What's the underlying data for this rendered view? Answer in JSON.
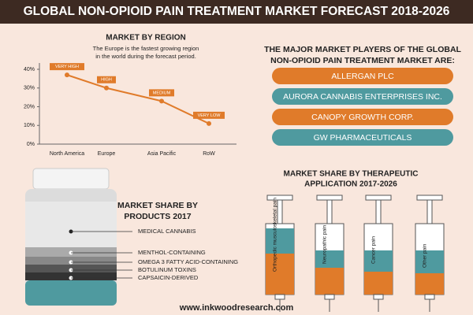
{
  "header": {
    "title": "GLOBAL NON-OPIOID PAIN TREATMENT MARKET FORECAST 2018-2026"
  },
  "chart_data": {
    "type": "line",
    "title": "MARKET BY REGION",
    "subtitle": [
      "The Europe is the fastest growing region",
      "in the world during the forecast period."
    ],
    "categories": [
      "North America",
      "Europe",
      "Asia Pacific",
      "RoW"
    ],
    "values": [
      37,
      30,
      23,
      11
    ],
    "point_labels": [
      "VERY HIGH",
      "HIGH",
      "MEDIUM",
      "VERY LOW"
    ],
    "color": "#e07b2a",
    "ylim": [
      0,
      40
    ],
    "yticks": [
      {
        "value": 0,
        "label": "0%"
      },
      {
        "value": 10,
        "label": "10%"
      },
      {
        "value": 20,
        "label": "20%"
      },
      {
        "value": 30,
        "label": "30%"
      },
      {
        "value": 40,
        "label": "40%"
      }
    ]
  },
  "players": {
    "title": [
      "THE MAJOR MARKET PLAYERS OF THE GLOBAL",
      "NON-OPIOID PAIN TREATMENT MARKET ARE:"
    ],
    "items": [
      "ALLERGAN PLC",
      "AURORA CANNABIS ENTERPRISES INC.",
      "CANOPY GROWTH CORP.",
      "GW PHARMACEUTICALS"
    ]
  },
  "products": {
    "title": [
      "MARKET SHARE BY",
      "PRODUCTS 2017"
    ],
    "items": [
      "MEDICAL CANNABIS",
      "MENTHOL-CONTAINING",
      "OMEGA 3 FATTY ACID-CONTAINING",
      "BOTULINUM TOXINS",
      "CAPSAICIN-DERIVED"
    ]
  },
  "applications": {
    "title": [
      "MARKET SHARE BY THERAPEUTIC",
      "APPLICATION  2017-2026"
    ],
    "items": [
      "Orthopedic musculoskeletal pain",
      "Neuropathic pain",
      "Cancer pain",
      "Other pain"
    ]
  },
  "footer": "www.inkwoodresearch.com"
}
